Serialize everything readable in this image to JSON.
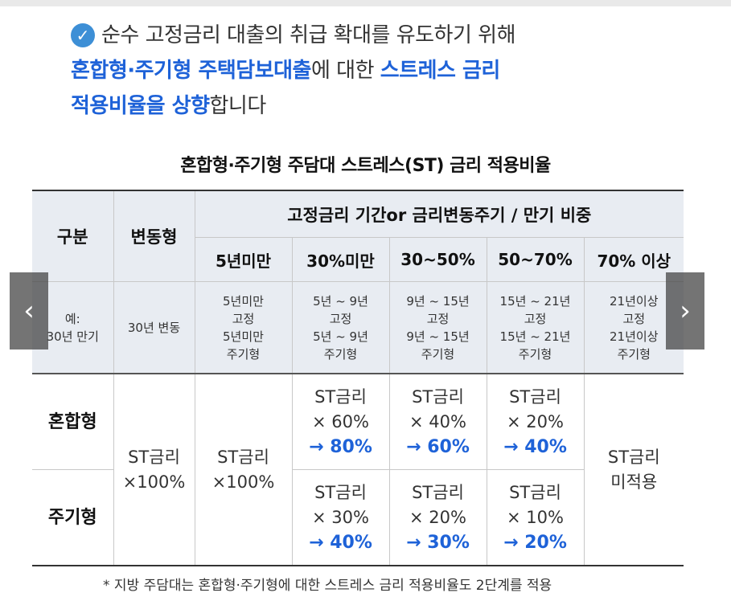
{
  "headline": {
    "line1": "순수 고정금리 대출의 취급 확대를 유도하기 위해",
    "line2_bold": "혼합형·주기형 주택담보대출",
    "line2_mid": "에 대한 ",
    "line2_bold2": "스트레스 금리",
    "line3_bold": "적용비율을 상향",
    "line3_tail": "합니다"
  },
  "table_title": "혼합형·주기형 주담대 스트레스(ST) 금리 적용비율",
  "table": {
    "col_category": "구분",
    "col_variable": "변동형",
    "col_group": "고정금리 기간or 금리변동주기 / 만기 비중",
    "sub_headers": [
      "5년미만",
      "30%미만",
      "30~50%",
      "50~70%",
      "70% 이상"
    ],
    "example": {
      "label": "예:\n30년 만기",
      "variable": "30년 변동",
      "cells": [
        "5년미만\n고정\n5년미만\n주기형",
        "5년 ~ 9년\n고정\n5년 ~ 9년\n주기형",
        "9년 ~ 15년\n고정\n9년 ~ 15년\n주기형",
        "15년 ~ 21년\n고정\n15년 ~ 21년\n주기형",
        "21년이상\n고정\n21년이상\n주기형"
      ]
    },
    "row_mixed": "혼합형",
    "row_periodic": "주기형",
    "variable_value": "ST금리\n×100%",
    "under5_value": "ST금리\n×100%",
    "mixed_cells": [
      {
        "top": "ST금리\n× 60%",
        "arrow": "→ 80%"
      },
      {
        "top": "ST금리\n× 40%",
        "arrow": "→ 60%"
      },
      {
        "top": "ST금리\n× 20%",
        "arrow": "→ 40%"
      }
    ],
    "periodic_cells": [
      {
        "top": "ST금리\n× 30%",
        "arrow": "→ 40%"
      },
      {
        "top": "ST금리\n× 20%",
        "arrow": "→ 30%"
      },
      {
        "top": "ST금리\n× 10%",
        "arrow": "→ 20%"
      }
    ],
    "over70_value": "ST금리\n미적용"
  },
  "footnote": "* 지방 주담대는 혼합형·주기형에 대한 스트레스 금리 적용비율도 2단계를 적용",
  "nav": {
    "prev_icon": "chevron-left-icon",
    "next_icon": "chevron-right-icon",
    "prev_glyph": "‹",
    "next_glyph": "›"
  },
  "colors": {
    "accent": "#1e62d8",
    "header_bg": "#e8ecf2",
    "check": "#3d8fd6"
  }
}
